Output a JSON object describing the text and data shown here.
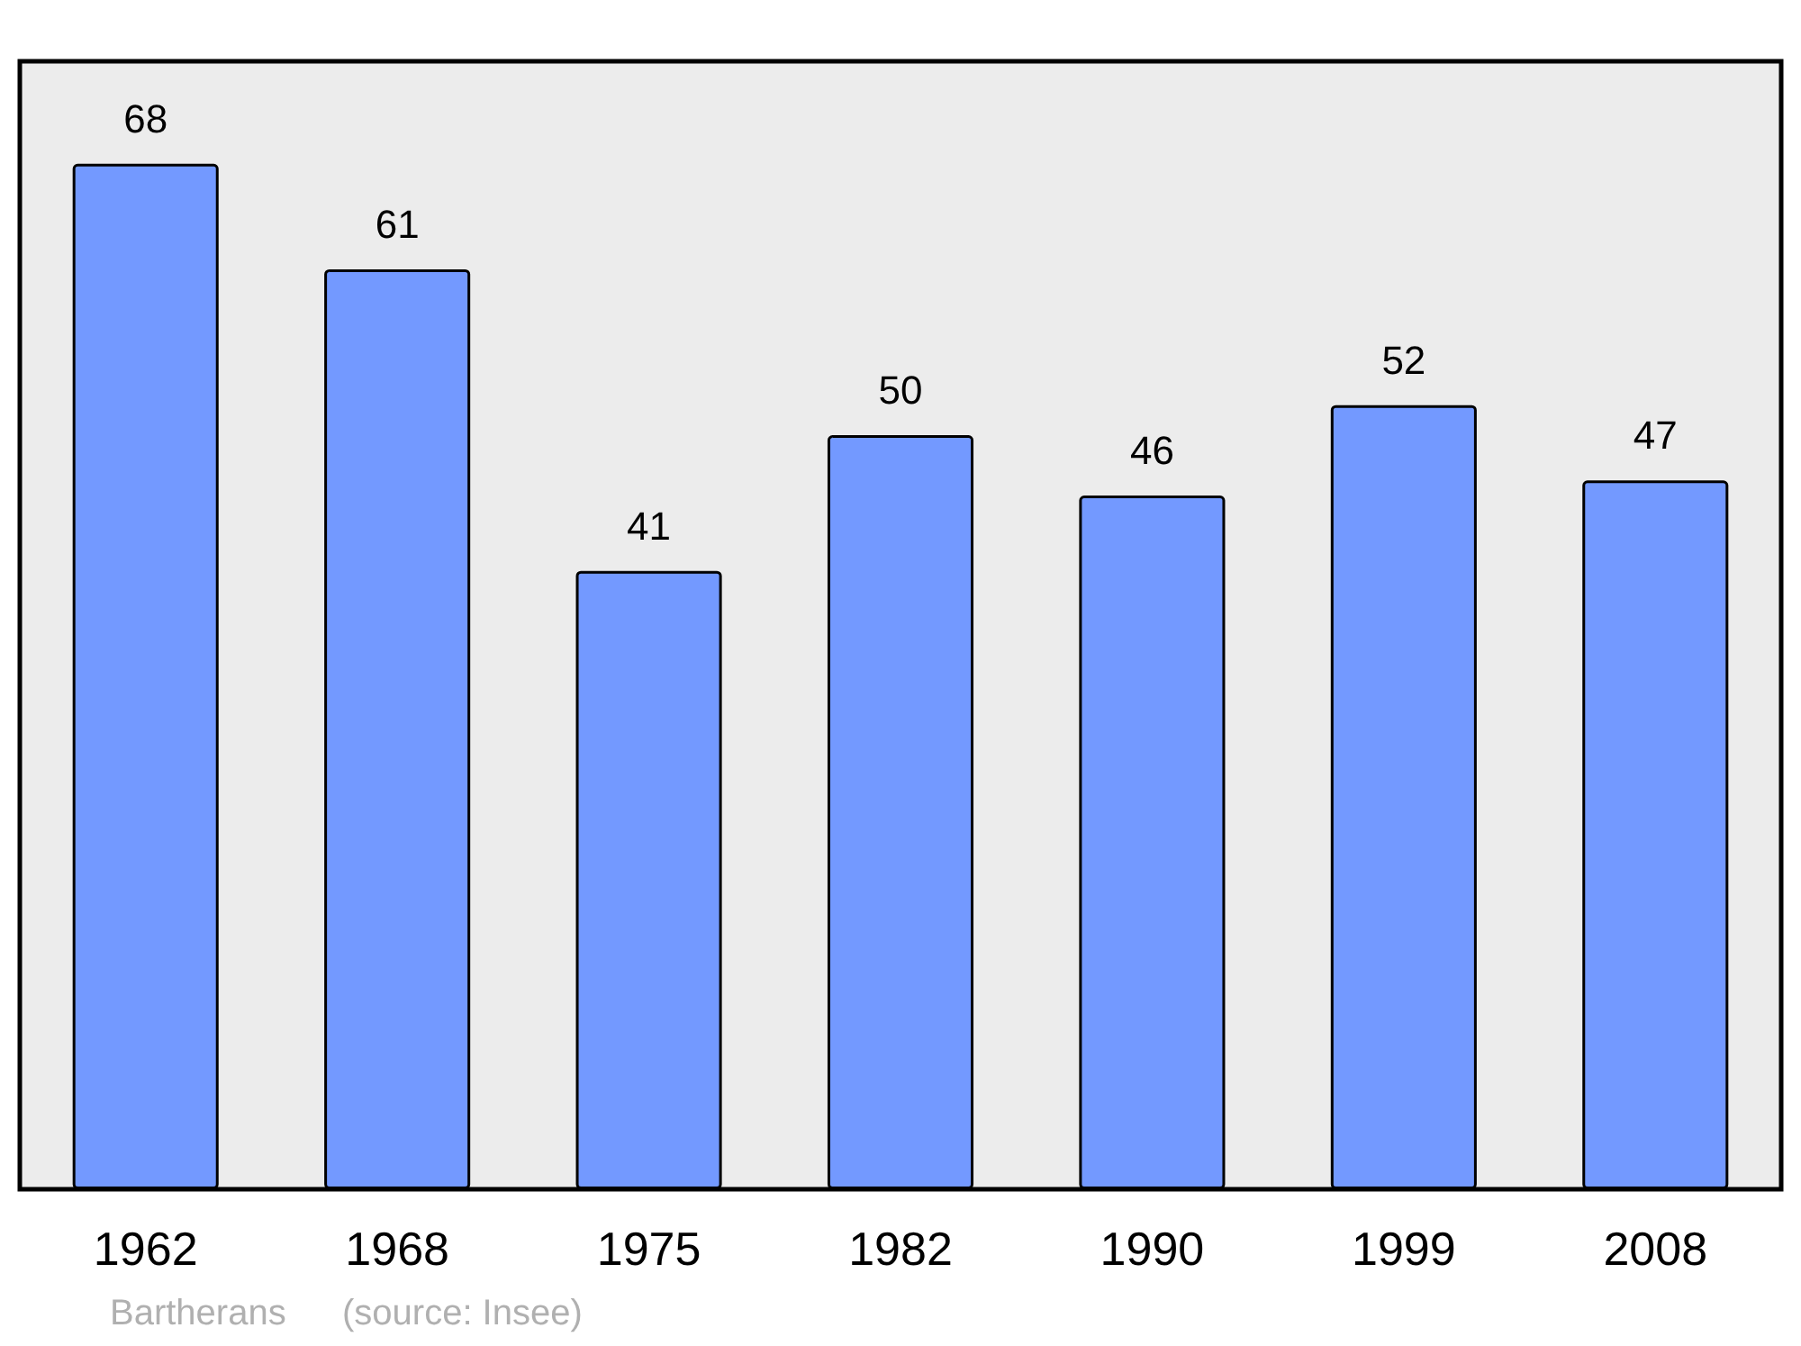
{
  "chart_data": {
    "type": "bar",
    "categories": [
      "1962",
      "1968",
      "1975",
      "1982",
      "1990",
      "1999",
      "2008"
    ],
    "values": [
      68,
      61,
      41,
      50,
      46,
      52,
      47
    ],
    "color": "#7399ff",
    "data_labels": true,
    "annotations": [
      "Bartherans",
      "(source: Insee)"
    ]
  }
}
